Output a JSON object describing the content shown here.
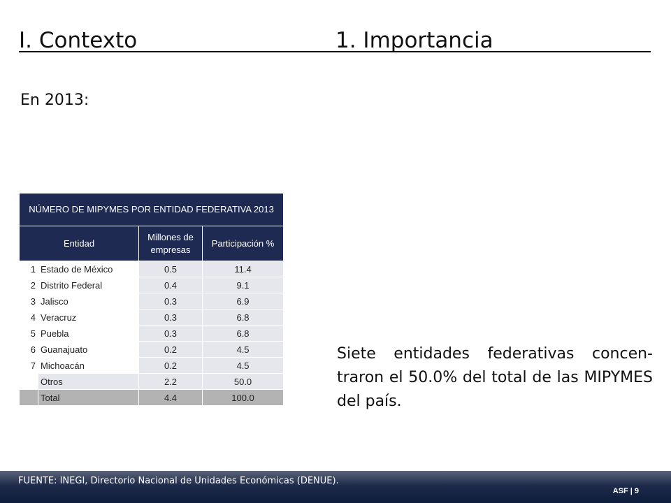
{
  "header": {
    "section": "I. Contexto",
    "subsection": "1.  Importancia"
  },
  "intro": "En 2013:",
  "table": {
    "caption": "NÚMERO DE MIPYMES POR ENTIDAD FEDERATIVA 2013",
    "columns": [
      "Entidad",
      "Millones de empresas",
      "Participación %"
    ],
    "rows": [
      {
        "rank": "1",
        "entity": "Estado de México",
        "millions": "0.5",
        "share": "11.4"
      },
      {
        "rank": "2",
        "entity": "Distrito Federal",
        "millions": "0.4",
        "share": "9.1"
      },
      {
        "rank": "3",
        "entity": "Jalisco",
        "millions": "0.3",
        "share": "6.9"
      },
      {
        "rank": "4",
        "entity": "Veracruz",
        "millions": "0.3",
        "share": "6.8"
      },
      {
        "rank": "5",
        "entity": "Puebla",
        "millions": "0.3",
        "share": "6.8"
      },
      {
        "rank": "6",
        "entity": "Guanajuato",
        "millions": "0.2",
        "share": "4.5"
      },
      {
        "rank": "7",
        "entity": "Michoacán",
        "millions": "0.2",
        "share": "4.5"
      },
      {
        "rank": "",
        "entity": "Otros",
        "millions": "2.2",
        "share": "50.0"
      },
      {
        "rank": "",
        "entity": "Total",
        "millions": "4.4",
        "share": "100.0"
      }
    ]
  },
  "side_text": "Siete entidades federativas concen-traron el 50.0% del total de las MIPYMES del país.",
  "footer": {
    "source": "FUENTE: INEGI, Directorio Nacional de Unidades Económicas (DENUE).",
    "page": "ASF | 9"
  }
}
